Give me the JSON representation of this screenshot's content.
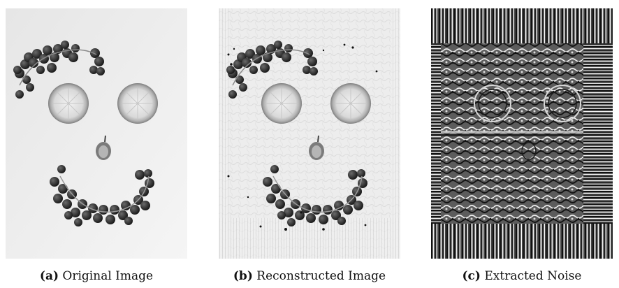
{
  "figure": {
    "panels": [
      {
        "id": "a",
        "tag": "(a)",
        "label": "Original Image"
      },
      {
        "id": "b",
        "tag": "(b)",
        "label": "Reconstructed Image"
      },
      {
        "id": "c",
        "tag": "(c)",
        "label": "Extracted Noise"
      }
    ]
  }
}
